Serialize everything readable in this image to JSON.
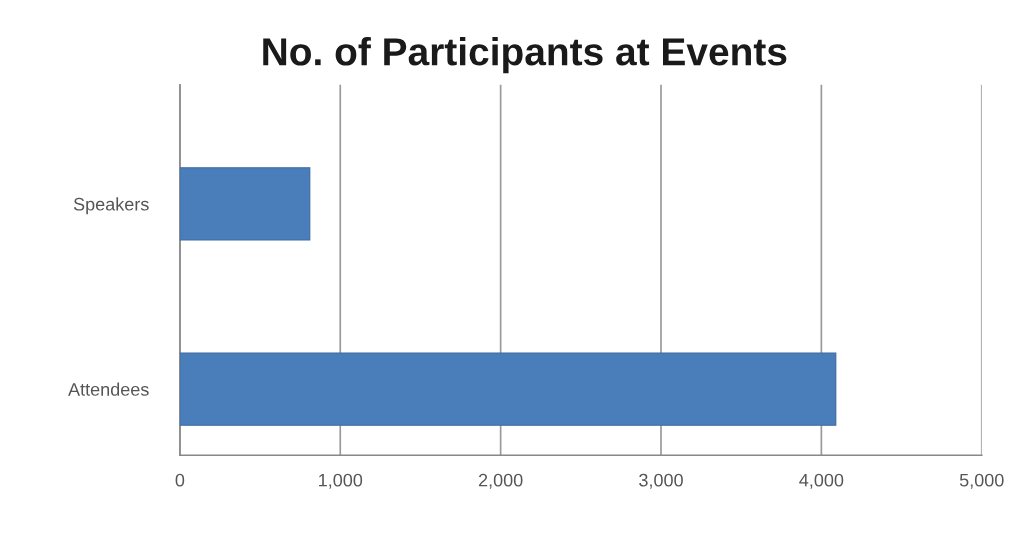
{
  "chart_data": {
    "type": "bar",
    "orientation": "horizontal",
    "title": "No. of Participants at Events",
    "categories": [
      "Speakers",
      "Attendees"
    ],
    "values": [
      810,
      4090
    ],
    "color": "#4a7ebb",
    "xlim": [
      0,
      5000
    ],
    "xticks": [
      {
        "value": 0,
        "label": "0"
      },
      {
        "value": 1000,
        "label": "1,000"
      },
      {
        "value": 2000,
        "label": "2,000"
      },
      {
        "value": 3000,
        "label": "3,000"
      },
      {
        "value": 4000,
        "label": "4,000"
      },
      {
        "value": 5000,
        "label": "5,000"
      }
    ],
    "grid": "x",
    "legend": false
  }
}
